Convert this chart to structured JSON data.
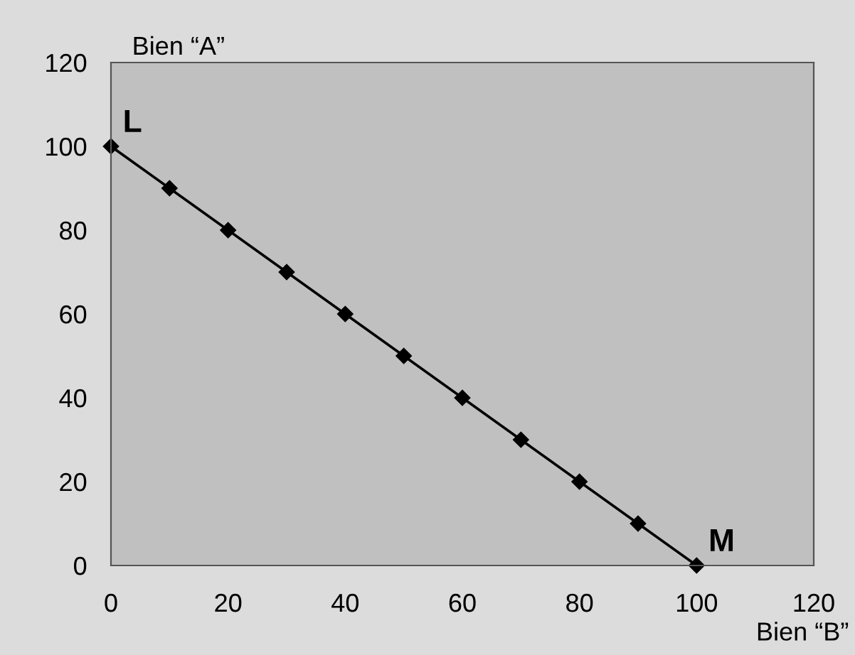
{
  "chart_data": {
    "type": "line",
    "xlabel": "Bien “B”",
    "ylabel": "Bien “A”",
    "x": [
      0,
      10,
      20,
      30,
      40,
      50,
      60,
      70,
      80,
      90,
      100
    ],
    "series": [
      {
        "color": "#000000",
        "values": [
          100,
          90,
          80,
          70,
          60,
          50,
          40,
          30,
          20,
          10,
          0
        ]
      }
    ],
    "marker": "diamond",
    "line_style": "solid",
    "grid": false,
    "legend": false,
    "xlim": [
      0,
      120
    ],
    "ylim": [
      0,
      120
    ],
    "xticks": [
      0,
      20,
      40,
      60,
      80,
      100,
      120
    ],
    "yticks": [
      0,
      20,
      40,
      60,
      80,
      100,
      120
    ],
    "annotations": [
      {
        "text": "L",
        "x": 0,
        "y": 100
      },
      {
        "text": "M",
        "x": 100,
        "y": 0
      }
    ]
  }
}
